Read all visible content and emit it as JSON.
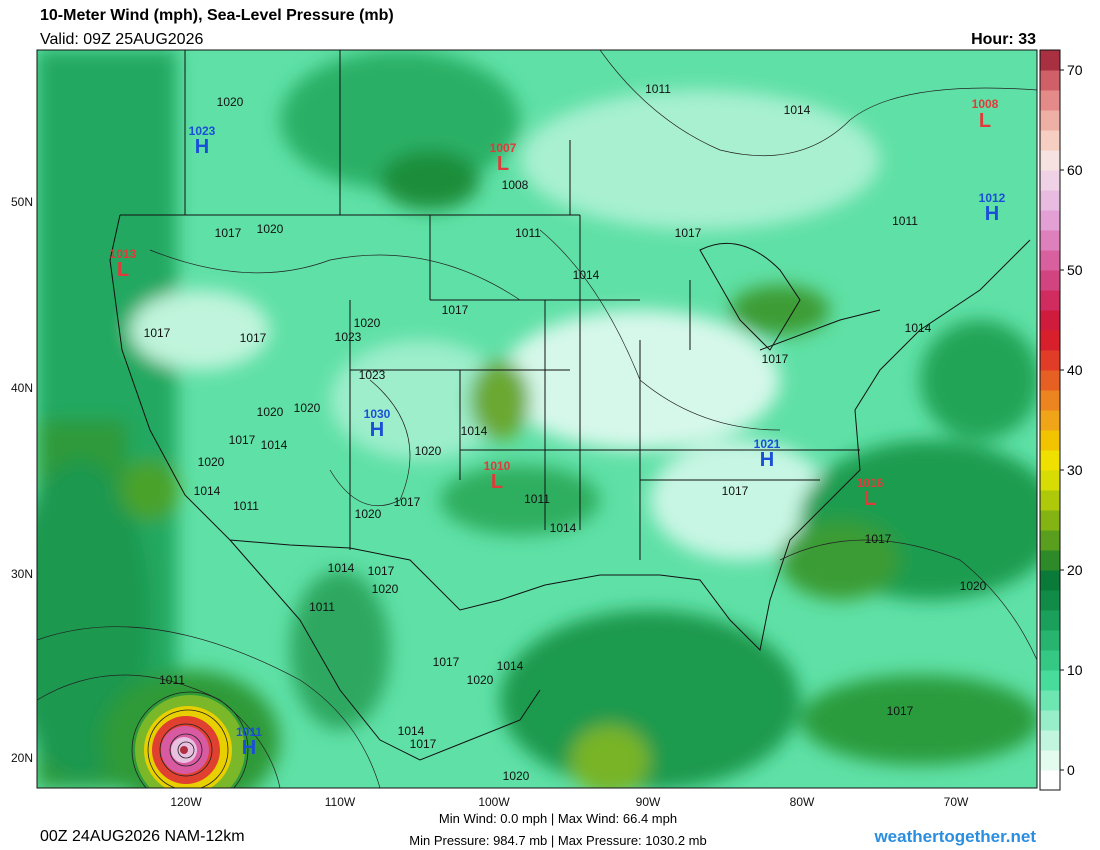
{
  "header": {
    "title": "10-Meter Wind (mph), Sea-Level Pressure (mb)",
    "valid": "Valid: 09Z 25AUG2026",
    "hour": "Hour: 33"
  },
  "footer": {
    "run": "00Z 24AUG2026 NAM-12km",
    "wind": "Min Wind:  0.0 mph | Max Wind: 66.4 mph",
    "pressure": "Min Pressure: 984.7 mb | Max Pressure: 1030.2 mb",
    "credit": "weathertogether.net"
  },
  "latitude_labels": [
    "50N",
    "40N",
    "30N",
    "20N"
  ],
  "longitude_labels": [
    "120W",
    "110W",
    "100W",
    "90W",
    "80W",
    "70W"
  ],
  "colorbar": {
    "lim": [
      -2,
      72
    ],
    "ticks": [
      0,
      10,
      20,
      30,
      40,
      50,
      60,
      70
    ],
    "colors": [
      "#ffffff",
      "#e4fbf0",
      "#c2f5de",
      "#98eec8",
      "#6ee6b2",
      "#48dc9c",
      "#34c884",
      "#26b46e",
      "#1aa05a",
      "#108c48",
      "#0a7a38",
      "#2e8a28",
      "#5a9e1e",
      "#84b414",
      "#aec80a",
      "#d6dc04",
      "#f0e000",
      "#f2c400",
      "#f0a418",
      "#ec8420",
      "#e66024",
      "#e03c28",
      "#d8202c",
      "#d01c3c",
      "#d02c60",
      "#d24480",
      "#d8609e",
      "#de80bc",
      "#e2a0d4",
      "#e8bce0",
      "#f0d2e6",
      "#f6e2e0",
      "#f6cfc2",
      "#eeb0a4",
      "#e48a88",
      "#d06068",
      "#a83040"
    ]
  },
  "pressure_labels": [
    1020,
    1011,
    1014,
    1008,
    1017,
    1020,
    1011,
    1017,
    1011,
    1014,
    1017,
    1020,
    1023,
    1017,
    1017,
    1014,
    1017,
    1023,
    1020,
    1020,
    1017,
    1014,
    1014,
    1020,
    1020,
    1014,
    1011,
    1017,
    1020,
    1011,
    1014,
    1017,
    1017,
    1014,
    1017,
    1020,
    1011,
    1020,
    1017,
    1014,
    1020,
    1011,
    1014,
    1017,
    1017,
    1020
  ],
  "centers": [
    {
      "symbol": "H",
      "pressure": 1023
    },
    {
      "symbol": "L",
      "pressure": 1013
    },
    {
      "symbol": "L",
      "pressure": 1007
    },
    {
      "symbol": "L",
      "pressure": 1008
    },
    {
      "symbol": "H",
      "pressure": 1012
    },
    {
      "symbol": "H",
      "pressure": 1030
    },
    {
      "symbol": "L",
      "pressure": 1010
    },
    {
      "symbol": "H",
      "pressure": 1021
    },
    {
      "symbol": "L",
      "pressure": 1016
    },
    {
      "symbol": "H",
      "pressure": 1011
    }
  ]
}
